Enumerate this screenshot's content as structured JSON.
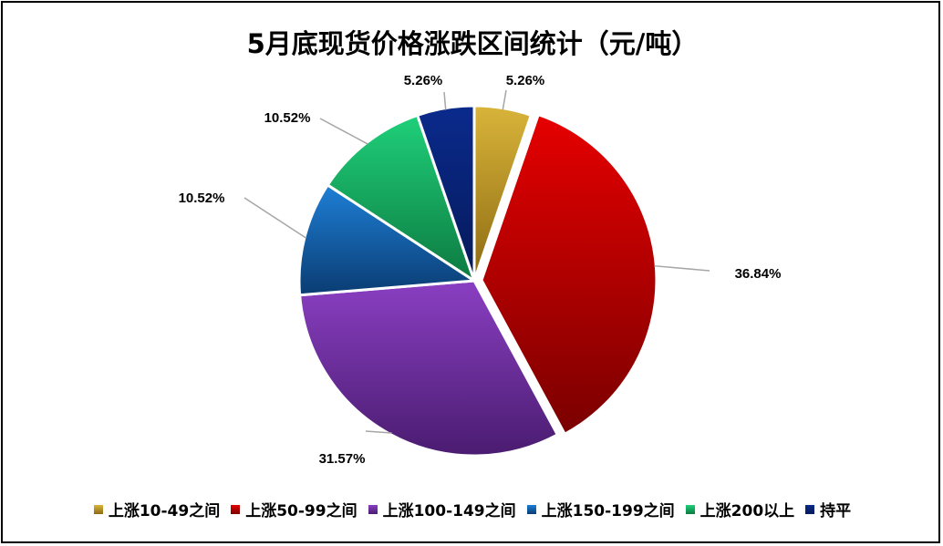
{
  "chart_data": {
    "type": "pie",
    "title": "5月底现货价格涨跌区间统计（元/吨）",
    "slices": [
      {
        "label": "上涨10-49之间",
        "value": 5.26,
        "display": "5.26%",
        "color": "#D9B43A",
        "color_dark": "#8C6A12"
      },
      {
        "label": "上涨50-99之间",
        "value": 36.84,
        "display": "36.84%",
        "color": "#E60000",
        "color_dark": "#7A0000"
      },
      {
        "label": "上涨100-149之间",
        "value": 31.57,
        "display": "31.57%",
        "color": "#8A3FC2",
        "color_dark": "#4A1C70"
      },
      {
        "label": "上涨150-199之间",
        "value": 10.52,
        "display": "10.52%",
        "color": "#1E7FD6",
        "color_dark": "#0A3C72"
      },
      {
        "label": "上涨200以上",
        "value": 10.52,
        "display": "10.52%",
        "color": "#1FD07A",
        "color_dark": "#0D7A40"
      },
      {
        "label": "持平",
        "value": 5.26,
        "display": "5.26%",
        "color": "#0A2A8C",
        "color_dark": "#061A5A"
      }
    ],
    "legend_position": "bottom"
  }
}
